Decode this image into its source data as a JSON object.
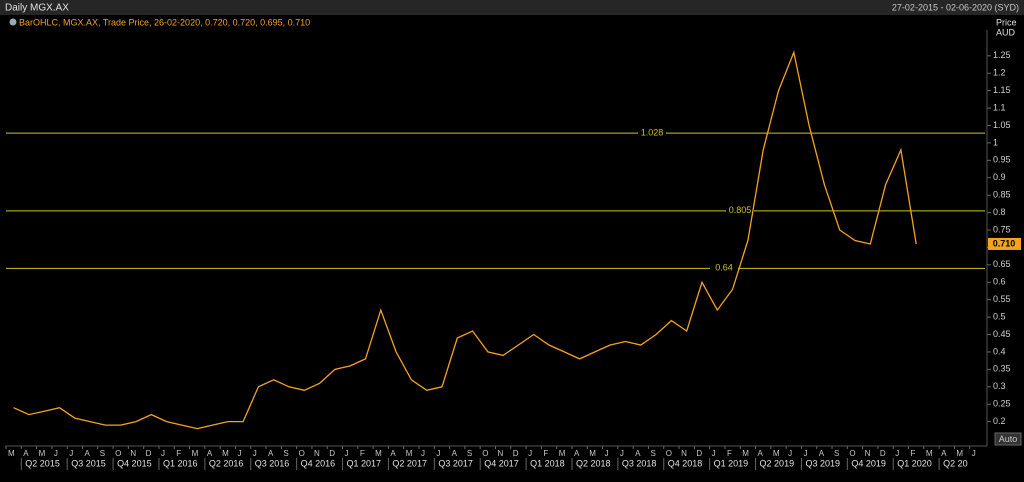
{
  "header": {
    "title": "Daily MGX.AX",
    "date_range": "27-02-2015 - 02-06-2020 (SYD)"
  },
  "chart_data": {
    "type": "line",
    "y_axis_label": [
      "Price",
      "AUD"
    ],
    "categories": [
      "M",
      "A",
      "M",
      "J",
      "J",
      "A",
      "S",
      "O",
      "N",
      "D",
      "J",
      "F",
      "M",
      "A",
      "M",
      "J",
      "J",
      "A",
      "S",
      "O",
      "N",
      "D",
      "J",
      "F",
      "M",
      "A",
      "M",
      "J",
      "J",
      "A",
      "S",
      "O",
      "N",
      "D",
      "J",
      "F",
      "M",
      "A",
      "M",
      "J",
      "J",
      "A",
      "S",
      "O",
      "N",
      "D",
      "J",
      "F",
      "M",
      "A",
      "M",
      "J",
      "J",
      "A",
      "S",
      "O",
      "N",
      "D",
      "J",
      "F",
      "M",
      "A",
      "M",
      "J"
    ],
    "quarters": [
      "Q2 2015",
      "Q3 2015",
      "Q4 2015",
      "Q1 2016",
      "Q2 2016",
      "Q3 2016",
      "Q4 2016",
      "Q1 2017",
      "Q2 2017",
      "Q3 2017",
      "Q4 2017",
      "Q1 2018",
      "Q2 2018",
      "Q3 2018",
      "Q4 2018",
      "Q1 2019",
      "Q2 2019",
      "Q3 2019",
      "Q4 2019",
      "Q1 2020",
      "Q2 20"
    ],
    "series": [
      {
        "name": "BarOHLC, MGX.AX, Trade Price, 26-02-2020, 0.720, 0.720, 0.695, 0.710",
        "color": "#f5a21e",
        "values": [
          0.24,
          0.22,
          0.23,
          0.24,
          0.21,
          0.2,
          0.19,
          0.19,
          0.2,
          0.22,
          0.2,
          0.19,
          0.18,
          0.19,
          0.2,
          0.2,
          0.3,
          0.32,
          0.3,
          0.29,
          0.31,
          0.35,
          0.36,
          0.38,
          0.52,
          0.4,
          0.32,
          0.29,
          0.3,
          0.44,
          0.46,
          0.4,
          0.39,
          0.42,
          0.45,
          0.42,
          0.4,
          0.38,
          0.4,
          0.42,
          0.43,
          0.42,
          0.45,
          0.49,
          0.46,
          0.6,
          0.52,
          0.58,
          0.72,
          0.98,
          1.15,
          1.26,
          1.05,
          0.88,
          0.75,
          0.72,
          0.71,
          0.88,
          0.98,
          0.71,
          null,
          null,
          null,
          null
        ]
      }
    ],
    "levels": [
      1.028,
      0.805,
      0.64
    ],
    "level_color": "#cfc31c",
    "last_price": {
      "value": 0.71,
      "label": "0.710"
    },
    "ylim": [
      0.13,
      1.35
    ],
    "yticks": [
      0.2,
      0.25,
      0.3,
      0.35,
      0.4,
      0.45,
      0.5,
      0.55,
      0.6,
      0.65,
      0.7,
      0.75,
      0.8,
      0.85,
      0.9,
      0.95,
      1,
      1.05,
      1.1,
      1.15,
      1.2,
      1.25
    ],
    "grid": false,
    "auto_button": "Auto"
  }
}
